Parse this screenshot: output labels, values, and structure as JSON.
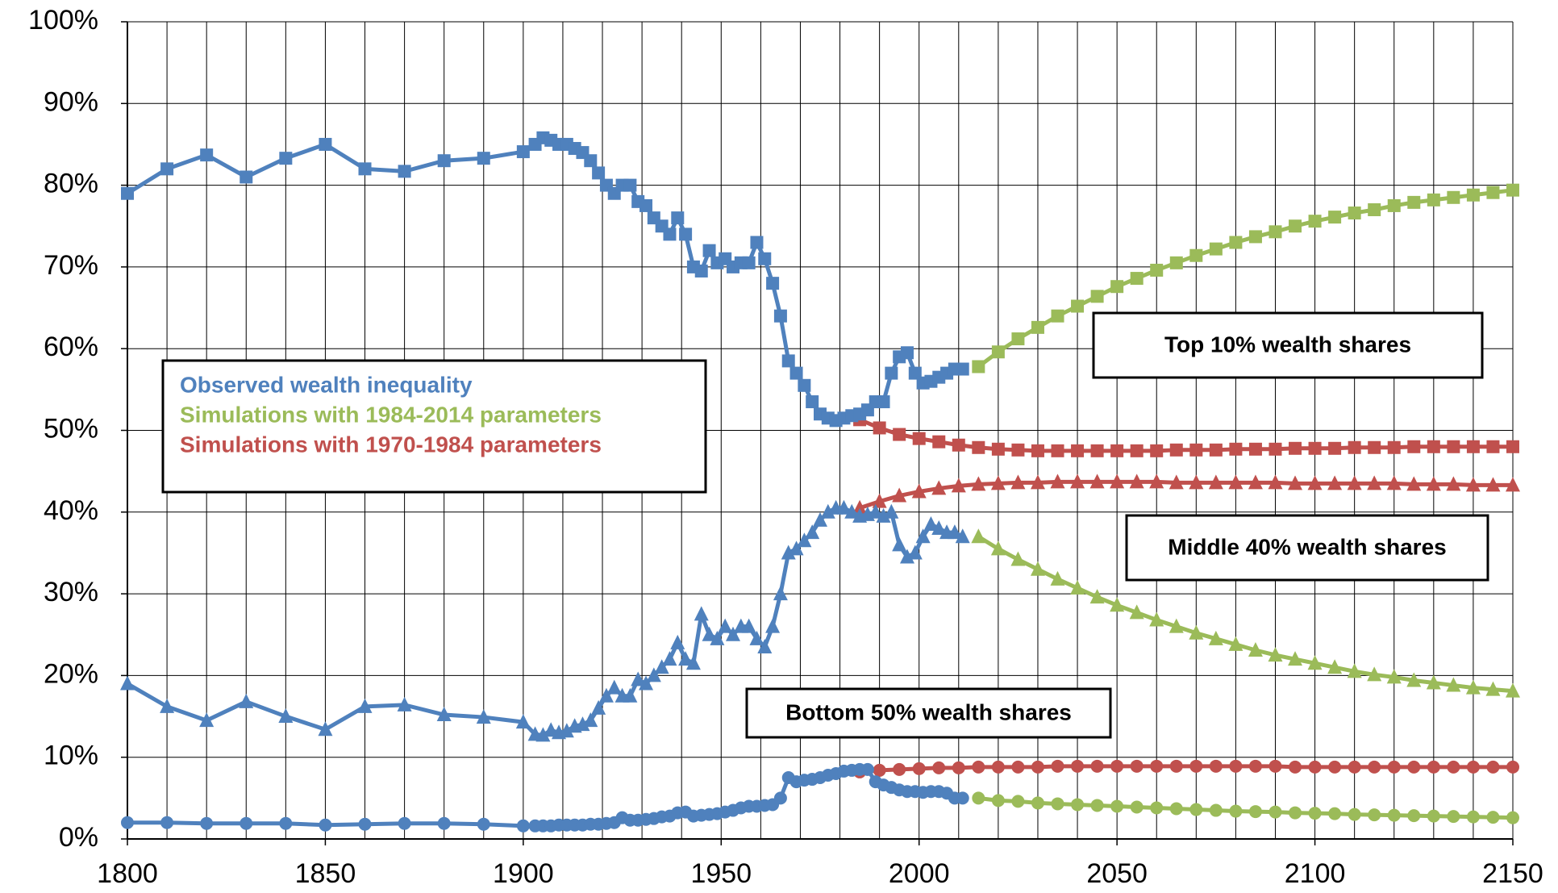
{
  "chart_data": {
    "type": "line",
    "xlim": [
      1800,
      2150
    ],
    "xticks": [
      1800,
      1850,
      1900,
      1950,
      2000,
      2050,
      2100,
      2150
    ],
    "xgrid": [
      1800,
      1810,
      1820,
      1830,
      1840,
      1850,
      1860,
      1870,
      1880,
      1890,
      1900,
      1910,
      1920,
      1930,
      1940,
      1950,
      1960,
      1970,
      1980,
      1990,
      2000,
      2010,
      2020,
      2030,
      2040,
      2050,
      2060,
      2070,
      2080,
      2090,
      2100,
      2110,
      2120,
      2130,
      2140,
      2150
    ],
    "ylim": [
      0,
      100
    ],
    "yticks": [
      {
        "value": 0,
        "label": "0%"
      },
      {
        "value": 10,
        "label": "10%"
      },
      {
        "value": 20,
        "label": "20%"
      },
      {
        "value": 30,
        "label": "30%"
      },
      {
        "value": 40,
        "label": "40%"
      },
      {
        "value": 50,
        "label": "50%"
      },
      {
        "value": 60,
        "label": "60%"
      },
      {
        "value": 70,
        "label": "70%"
      },
      {
        "value": 80,
        "label": "80%"
      },
      {
        "value": 90,
        "label": "90%"
      },
      {
        "value": 100,
        "label": "100%"
      }
    ],
    "grid": true,
    "series": [
      {
        "name": "Simulations with 1970-1984 parameters",
        "color": "#c0504d",
        "x": [
          1985,
          1990,
          1995,
          2000,
          2005,
          2010,
          2015,
          2020,
          2025,
          2030,
          2035,
          2040,
          2045,
          2050,
          2055,
          2060,
          2065,
          2070,
          2075,
          2080,
          2085,
          2090,
          2095,
          2100,
          2105,
          2110,
          2115,
          2120,
          2125,
          2130,
          2135,
          2140,
          2145,
          2150
        ],
        "lines": [
          {
            "marker": "square",
            "values": [
              51.3,
              50.3,
              49.5,
              49,
              48.6,
              48.2,
              47.9,
              47.7,
              47.6,
              47.5,
              47.5,
              47.5,
              47.5,
              47.5,
              47.5,
              47.5,
              47.6,
              47.6,
              47.6,
              47.7,
              47.7,
              47.7,
              47.8,
              47.8,
              47.8,
              47.9,
              47.9,
              47.9,
              48,
              48,
              48,
              48,
              48,
              48
            ]
          },
          {
            "marker": "triangle",
            "values": [
              40.5,
              41.3,
              42,
              42.5,
              42.9,
              43.2,
              43.4,
              43.5,
              43.6,
              43.6,
              43.7,
              43.7,
              43.7,
              43.7,
              43.7,
              43.7,
              43.6,
              43.6,
              43.6,
              43.6,
              43.6,
              43.6,
              43.5,
              43.5,
              43.5,
              43.5,
              43.5,
              43.5,
              43.4,
              43.4,
              43.4,
              43.3,
              43.3,
              43.3
            ]
          },
          {
            "marker": "circle",
            "values": [
              8.2,
              8.4,
              8.5,
              8.6,
              8.7,
              8.7,
              8.8,
              8.8,
              8.8,
              8.8,
              8.9,
              8.9,
              8.9,
              8.9,
              8.9,
              8.9,
              8.9,
              8.9,
              8.9,
              8.9,
              8.9,
              8.9,
              8.8,
              8.8,
              8.8,
              8.8,
              8.8,
              8.8,
              8.8,
              8.8,
              8.8,
              8.8,
              8.8,
              8.8
            ]
          }
        ]
      },
      {
        "name": "Simulations with 1984-2014 parameters",
        "color": "#9bbb59",
        "x": [
          2015,
          2020,
          2025,
          2030,
          2035,
          2040,
          2045,
          2050,
          2055,
          2060,
          2065,
          2070,
          2075,
          2080,
          2085,
          2090,
          2095,
          2100,
          2105,
          2110,
          2115,
          2120,
          2125,
          2130,
          2135,
          2140,
          2145,
          2150
        ],
        "lines": [
          {
            "marker": "square",
            "values": [
              57.8,
              59.6,
              61.2,
              62.6,
              64,
              65.2,
              66.4,
              67.6,
              68.6,
              69.6,
              70.5,
              71.4,
              72.2,
              73,
              73.7,
              74.3,
              75,
              75.6,
              76.1,
              76.6,
              77,
              77.5,
              77.9,
              78.2,
              78.5,
              78.8,
              79.1,
              79.4
            ]
          },
          {
            "marker": "triangle",
            "values": [
              37,
              35.5,
              34.2,
              33,
              31.8,
              30.7,
              29.6,
              28.6,
              27.7,
              26.8,
              26,
              25.2,
              24.5,
              23.8,
              23.1,
              22.5,
              22,
              21.5,
              21,
              20.5,
              20.1,
              19.8,
              19.4,
              19.1,
              18.8,
              18.5,
              18.3,
              18.1
            ]
          },
          {
            "marker": "circle",
            "values": [
              5,
              4.7,
              4.6,
              4.4,
              4.3,
              4.2,
              4.1,
              4,
              3.9,
              3.8,
              3.7,
              3.6,
              3.5,
              3.4,
              3.35,
              3.3,
              3.2,
              3.15,
              3.1,
              3,
              2.95,
              2.9,
              2.85,
              2.8,
              2.75,
              2.7,
              2.65,
              2.6
            ]
          }
        ]
      },
      {
        "name": "Observed wealth inequality",
        "color": "#4f81bd",
        "x": [
          1800,
          1810,
          1820,
          1830,
          1840,
          1850,
          1860,
          1870,
          1880,
          1890,
          1900,
          1903,
          1905,
          1907,
          1909,
          1911,
          1913,
          1915,
          1917,
          1919,
          1921,
          1923,
          1925,
          1927,
          1929,
          1931,
          1933,
          1935,
          1937,
          1939,
          1941,
          1943,
          1945,
          1947,
          1949,
          1951,
          1953,
          1955,
          1957,
          1959,
          1961,
          1963,
          1965,
          1967,
          1969,
          1971,
          1973,
          1975,
          1977,
          1979,
          1981,
          1983,
          1985,
          1987,
          1989,
          1991,
          1993,
          1995,
          1997,
          1999,
          2001,
          2003,
          2005,
          2007,
          2009,
          2011
        ],
        "lines": [
          {
            "marker": "square",
            "values": [
              79,
              82,
              83.7,
              81,
              83.3,
              85,
              82,
              81.7,
              83,
              83.3,
              84.1,
              85,
              85.8,
              85.5,
              85,
              85,
              84.5,
              84,
              83,
              81.5,
              80,
              79,
              80,
              80,
              78,
              77.5,
              76,
              75,
              74,
              76,
              74,
              70,
              69.5,
              72,
              70.5,
              71,
              70,
              70.5,
              70.5,
              73,
              71,
              68,
              64,
              58.5,
              57,
              55.5,
              53.5,
              52,
              51.5,
              51.2,
              51.5,
              51.8,
              52,
              52.5,
              53.5,
              53.5,
              57,
              59,
              59.5,
              57,
              55.8,
              56,
              56.5,
              57,
              57.5,
              57.5
            ]
          },
          {
            "marker": "triangle",
            "values": [
              19,
              16.2,
              14.5,
              16.8,
              15,
              13.4,
              16.2,
              16.4,
              15.2,
              14.9,
              14.3,
              12.8,
              12.7,
              13.3,
              13,
              13.2,
              13.8,
              14,
              14.5,
              16,
              17.5,
              18.5,
              17.5,
              17.5,
              19.5,
              19,
              20,
              21,
              22,
              24,
              22,
              21.5,
              27.5,
              25,
              24.5,
              26,
              25,
              26,
              26,
              24.5,
              23.5,
              26,
              30,
              35,
              35.5,
              36.5,
              37.5,
              39,
              40,
              40.5,
              40.5,
              40,
              39.5,
              39.7,
              40,
              39.5,
              40,
              36,
              34.5,
              35,
              37,
              38.5,
              38,
              37.5,
              37.5,
              37
            ]
          },
          {
            "marker": "circle",
            "values": [
              2,
              2,
              1.9,
              1.9,
              1.9,
              1.7,
              1.8,
              1.9,
              1.9,
              1.8,
              1.6,
              1.6,
              1.6,
              1.6,
              1.7,
              1.7,
              1.7,
              1.7,
              1.8,
              1.8,
              1.9,
              2,
              2.6,
              2.3,
              2.3,
              2.4,
              2.5,
              2.7,
              2.8,
              3.2,
              3.3,
              2.8,
              2.9,
              3,
              3.1,
              3.3,
              3.5,
              3.8,
              4,
              4,
              4.1,
              4.2,
              5,
              7.5,
              7,
              7.2,
              7.3,
              7.5,
              7.8,
              8,
              8.3,
              8.4,
              8.5,
              8.5,
              7,
              6.6,
              6.3,
              6,
              5.8,
              5.8,
              5.7,
              5.8,
              5.8,
              5.6,
              5,
              5
            ]
          }
        ]
      }
    ],
    "annotations": [
      "Top 10% wealth shares",
      "Middle 40% wealth shares",
      "Bottom 50% wealth shares"
    ]
  }
}
